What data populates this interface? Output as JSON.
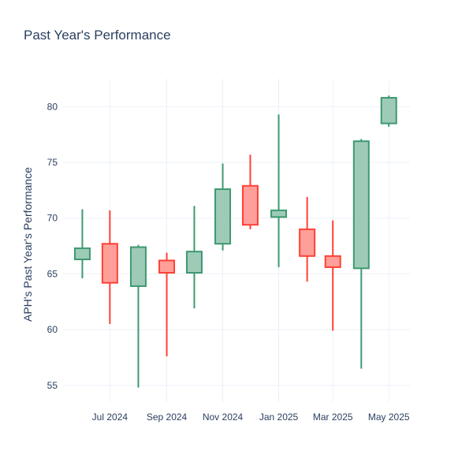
{
  "chart_data": {
    "type": "candlestick",
    "title": "Past Year's Performance",
    "xlabel": "",
    "ylabel": "APH's Past Year's Performance",
    "ylim": [
      53.5,
      82.5
    ],
    "yticks": [
      55,
      60,
      65,
      70,
      75,
      80
    ],
    "xlim": [
      "2024-05-11",
      "2025-05-24"
    ],
    "xticks": [
      {
        "date": "2024-07-01",
        "label": "Jul 2024"
      },
      {
        "date": "2024-09-01",
        "label": "Sep 2024"
      },
      {
        "date": "2024-11-01",
        "label": "Nov 2024"
      },
      {
        "date": "2025-01-01",
        "label": "Jan 2025"
      },
      {
        "date": "2025-03-01",
        "label": "Mar 2025"
      },
      {
        "date": "2025-05-01",
        "label": "May 2025"
      }
    ],
    "grid": true,
    "colors": {
      "increasing": "#3d9970",
      "decreasing": "#ff4136",
      "increasing_fill": "#9ecbb7",
      "decreasing_fill": "#ff9f9a"
    },
    "candles": [
      {
        "date": "2024-06-01",
        "open": 66.3,
        "high": 70.8,
        "low": 64.6,
        "close": 67.3
      },
      {
        "date": "2024-07-01",
        "open": 67.7,
        "high": 70.7,
        "low": 60.5,
        "close": 64.2
      },
      {
        "date": "2024-08-01",
        "open": 63.9,
        "high": 67.6,
        "low": 54.8,
        "close": 67.4
      },
      {
        "date": "2024-09-01",
        "open": 66.2,
        "high": 66.9,
        "low": 57.6,
        "close": 65.1
      },
      {
        "date": "2024-10-01",
        "open": 65.1,
        "high": 71.1,
        "low": 61.9,
        "close": 67.0
      },
      {
        "date": "2024-11-01",
        "open": 67.7,
        "high": 74.9,
        "low": 67.1,
        "close": 72.6
      },
      {
        "date": "2024-12-01",
        "open": 72.9,
        "high": 75.7,
        "low": 69.0,
        "close": 69.4
      },
      {
        "date": "2025-01-01",
        "open": 70.1,
        "high": 79.3,
        "low": 65.6,
        "close": 70.7
      },
      {
        "date": "2025-02-01",
        "open": 69.0,
        "high": 71.9,
        "low": 64.3,
        "close": 66.6
      },
      {
        "date": "2025-03-01",
        "open": 66.6,
        "high": 69.8,
        "low": 59.9,
        "close": 65.6
      },
      {
        "date": "2025-04-01",
        "open": 65.5,
        "high": 77.1,
        "low": 56.5,
        "close": 76.9
      },
      {
        "date": "2025-05-01",
        "open": 78.5,
        "high": 81.0,
        "low": 78.2,
        "close": 80.8
      }
    ]
  }
}
